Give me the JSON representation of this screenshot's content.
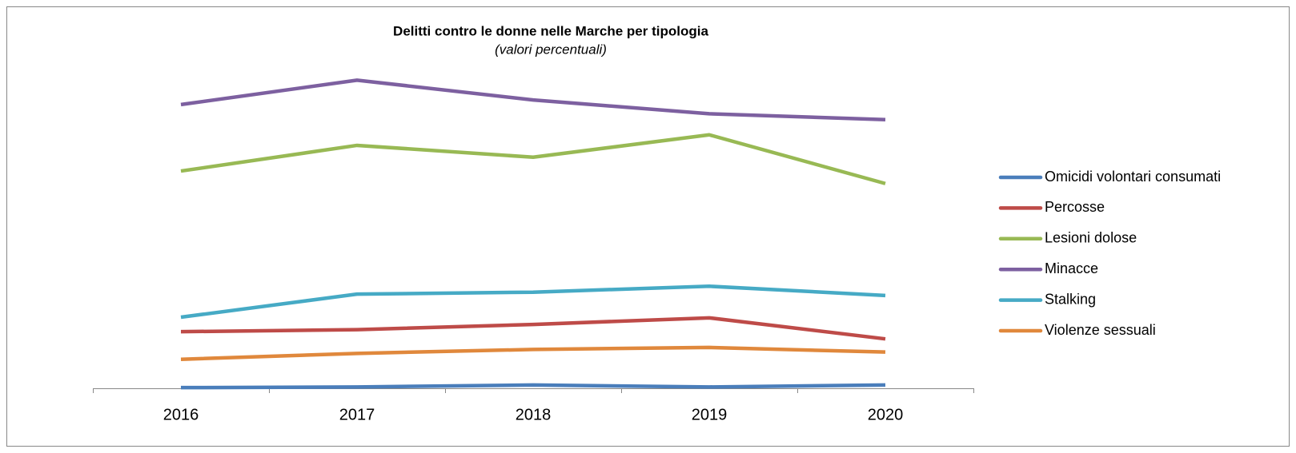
{
  "chart_data": {
    "type": "line",
    "title": "Delitti contro le donne nelle Marche per tipologia",
    "subtitle": "(valori percentuali)",
    "categories": [
      "2016",
      "2017",
      "2018",
      "2019",
      "2020"
    ],
    "ylim": [
      0,
      50
    ],
    "legend": "right",
    "series": [
      {
        "name": "Omicidi volontari consumati",
        "color": "#4a7ebb",
        "values": [
          0.1,
          0.2,
          0.5,
          0.2,
          0.5
        ]
      },
      {
        "name": "Percosse",
        "color": "#be4b48",
        "values": [
          8.6,
          8.9,
          9.7,
          10.7,
          7.5
        ]
      },
      {
        "name": "Lesioni dolose",
        "color": "#98b954",
        "values": [
          33.0,
          36.9,
          35.1,
          38.5,
          31.1
        ]
      },
      {
        "name": "Minacce",
        "color": "#7d60a0",
        "values": [
          43.1,
          46.8,
          43.8,
          41.7,
          40.8
        ]
      },
      {
        "name": "Stalking",
        "color": "#46aac5",
        "values": [
          10.8,
          14.3,
          14.6,
          15.5,
          14.1
        ]
      },
      {
        "name": "Violenze sessuali",
        "color": "#e0883c",
        "values": [
          4.4,
          5.3,
          5.9,
          6.2,
          5.5
        ]
      }
    ]
  }
}
